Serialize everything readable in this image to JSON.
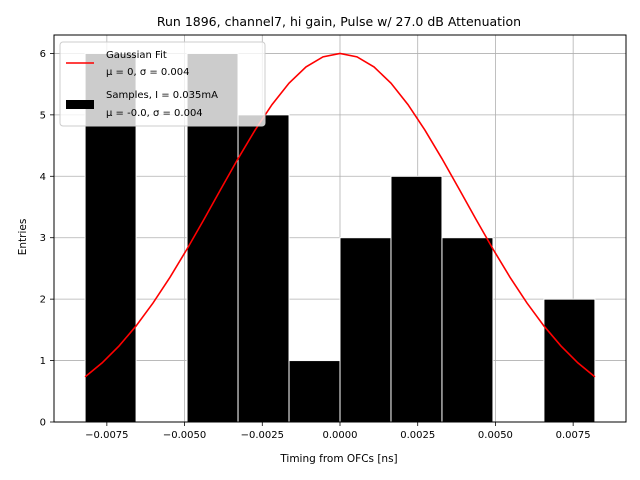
{
  "chart_data": {
    "type": "bar",
    "title": "Run 1896, channel7, hi gain, Pulse w/ 27.0 dB Attenuation",
    "xlabel": "Timing from OFCs [ns]",
    "ylabel": "Entries",
    "xlim": [
      -0.0092,
      0.0092
    ],
    "ylim": [
      0,
      6.3
    ],
    "xticks": [
      -0.0075,
      -0.005,
      -0.0025,
      0.0,
      0.0025,
      0.005,
      0.0075
    ],
    "xtick_labels": [
      "−0.0075",
      "−0.0050",
      "−0.0025",
      "0.0000",
      "0.0025",
      "0.0050",
      "0.0075"
    ],
    "yticks": [
      0,
      1,
      2,
      3,
      4,
      5,
      6
    ],
    "ytick_labels": [
      "0",
      "1",
      "2",
      "3",
      "4",
      "5",
      "6"
    ],
    "grid": true,
    "legend_position": "top-left",
    "histogram": {
      "bin_edges": [
        -0.0082,
        -0.00656,
        -0.00492,
        -0.00328,
        -0.00164,
        0.0,
        0.00164,
        0.00328,
        0.00492,
        0.00656,
        0.0082
      ],
      "counts": [
        6,
        0,
        6,
        5,
        1,
        3,
        4,
        3,
        0,
        2
      ],
      "color": "#000000",
      "edge_color": "#ffffff"
    },
    "fit": {
      "mu": 0.0,
      "sigma": 0.004,
      "amplitude": 6.0,
      "x_range": [
        -0.0082,
        0.0082
      ],
      "color": "#ff0000"
    },
    "legend": [
      {
        "label_line1": "Gaussian Fit",
        "label_line2": "μ = 0, σ = 0.004",
        "kind": "line",
        "color": "#ff0000"
      },
      {
        "label_line1": "Samples, I = 0.035mA",
        "label_line2": "μ = -0.0, σ = 0.004",
        "kind": "patch",
        "color": "#000000"
      }
    ]
  }
}
